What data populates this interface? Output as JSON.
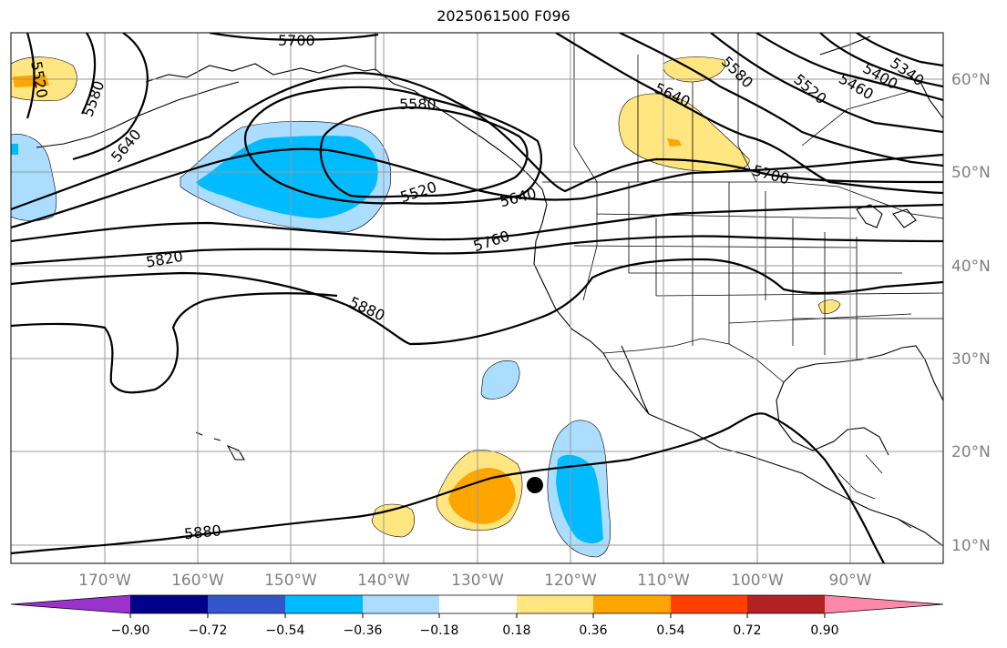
{
  "title": "2025061500 F096",
  "map": {
    "lon_range": [
      -180,
      -80
    ],
    "lat_range": [
      8,
      65
    ],
    "lon_grid": [
      -170,
      -160,
      -150,
      -140,
      -130,
      -120,
      -110,
      -100,
      -90
    ],
    "lat_grid": [
      10,
      20,
      30,
      40,
      50,
      60
    ],
    "lon_labels": [
      "170°W",
      "160°W",
      "150°W",
      "140°W",
      "130°W",
      "120°W",
      "110°W",
      "100°W",
      "90°W"
    ],
    "lat_labels": [
      "10°N",
      "20°N",
      "30°N",
      "40°N",
      "50°N",
      "60°N"
    ],
    "contour_labels": [
      "5700",
      "5580",
      "5520",
      "5580",
      "5640",
      "5520",
      "5640",
      "5760",
      "5820",
      "5880",
      "5880",
      "5640",
      "5580",
      "5700",
      "5520",
      "5460",
      "5400",
      "5340"
    ],
    "storm_marker": {
      "lon": -124,
      "lat": 16.3
    }
  },
  "colorbar": {
    "levels": [
      "−0.90",
      "−0.72",
      "−0.54",
      "−0.36",
      "−0.18",
      "0.18",
      "0.36",
      "0.54",
      "0.72",
      "0.90"
    ],
    "colors": [
      "#9933cc",
      "#000088",
      "#3355cc",
      "#00bbff",
      "#aaddff",
      "#ffffff",
      "#ffe680",
      "#ffa500",
      "#ff4000",
      "#b22222",
      "#ff88aa"
    ]
  },
  "colors": {
    "tick_label": "#808080",
    "grid": "#9a9a9a"
  }
}
